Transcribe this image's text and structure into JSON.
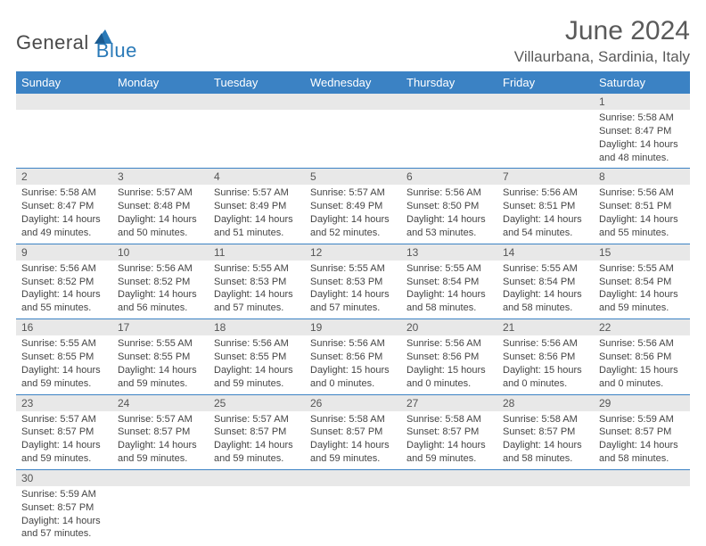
{
  "brand": {
    "part1": "General",
    "part2": "Blue"
  },
  "title": "June 2024",
  "location": "Villaurbana, Sardinia, Italy",
  "colors": {
    "header_bg": "#3b82c4",
    "header_text": "#ffffff",
    "daynum_bg": "#e8e8e8",
    "border": "#3b82c4",
    "logo_gray": "#4a4a4a",
    "logo_blue": "#2a7ab8"
  },
  "weekdays": [
    "Sunday",
    "Monday",
    "Tuesday",
    "Wednesday",
    "Thursday",
    "Friday",
    "Saturday"
  ],
  "weeks": [
    [
      null,
      null,
      null,
      null,
      null,
      null,
      {
        "n": "1",
        "sr": "5:58 AM",
        "ss": "8:47 PM",
        "dl": "14 hours and 48 minutes."
      }
    ],
    [
      {
        "n": "2",
        "sr": "5:58 AM",
        "ss": "8:47 PM",
        "dl": "14 hours and 49 minutes."
      },
      {
        "n": "3",
        "sr": "5:57 AM",
        "ss": "8:48 PM",
        "dl": "14 hours and 50 minutes."
      },
      {
        "n": "4",
        "sr": "5:57 AM",
        "ss": "8:49 PM",
        "dl": "14 hours and 51 minutes."
      },
      {
        "n": "5",
        "sr": "5:57 AM",
        "ss": "8:49 PM",
        "dl": "14 hours and 52 minutes."
      },
      {
        "n": "6",
        "sr": "5:56 AM",
        "ss": "8:50 PM",
        "dl": "14 hours and 53 minutes."
      },
      {
        "n": "7",
        "sr": "5:56 AM",
        "ss": "8:51 PM",
        "dl": "14 hours and 54 minutes."
      },
      {
        "n": "8",
        "sr": "5:56 AM",
        "ss": "8:51 PM",
        "dl": "14 hours and 55 minutes."
      }
    ],
    [
      {
        "n": "9",
        "sr": "5:56 AM",
        "ss": "8:52 PM",
        "dl": "14 hours and 55 minutes."
      },
      {
        "n": "10",
        "sr": "5:56 AM",
        "ss": "8:52 PM",
        "dl": "14 hours and 56 minutes."
      },
      {
        "n": "11",
        "sr": "5:55 AM",
        "ss": "8:53 PM",
        "dl": "14 hours and 57 minutes."
      },
      {
        "n": "12",
        "sr": "5:55 AM",
        "ss": "8:53 PM",
        "dl": "14 hours and 57 minutes."
      },
      {
        "n": "13",
        "sr": "5:55 AM",
        "ss": "8:54 PM",
        "dl": "14 hours and 58 minutes."
      },
      {
        "n": "14",
        "sr": "5:55 AM",
        "ss": "8:54 PM",
        "dl": "14 hours and 58 minutes."
      },
      {
        "n": "15",
        "sr": "5:55 AM",
        "ss": "8:54 PM",
        "dl": "14 hours and 59 minutes."
      }
    ],
    [
      {
        "n": "16",
        "sr": "5:55 AM",
        "ss": "8:55 PM",
        "dl": "14 hours and 59 minutes."
      },
      {
        "n": "17",
        "sr": "5:55 AM",
        "ss": "8:55 PM",
        "dl": "14 hours and 59 minutes."
      },
      {
        "n": "18",
        "sr": "5:56 AM",
        "ss": "8:55 PM",
        "dl": "14 hours and 59 minutes."
      },
      {
        "n": "19",
        "sr": "5:56 AM",
        "ss": "8:56 PM",
        "dl": "15 hours and 0 minutes."
      },
      {
        "n": "20",
        "sr": "5:56 AM",
        "ss": "8:56 PM",
        "dl": "15 hours and 0 minutes."
      },
      {
        "n": "21",
        "sr": "5:56 AM",
        "ss": "8:56 PM",
        "dl": "15 hours and 0 minutes."
      },
      {
        "n": "22",
        "sr": "5:56 AM",
        "ss": "8:56 PM",
        "dl": "15 hours and 0 minutes."
      }
    ],
    [
      {
        "n": "23",
        "sr": "5:57 AM",
        "ss": "8:57 PM",
        "dl": "14 hours and 59 minutes."
      },
      {
        "n": "24",
        "sr": "5:57 AM",
        "ss": "8:57 PM",
        "dl": "14 hours and 59 minutes."
      },
      {
        "n": "25",
        "sr": "5:57 AM",
        "ss": "8:57 PM",
        "dl": "14 hours and 59 minutes."
      },
      {
        "n": "26",
        "sr": "5:58 AM",
        "ss": "8:57 PM",
        "dl": "14 hours and 59 minutes."
      },
      {
        "n": "27",
        "sr": "5:58 AM",
        "ss": "8:57 PM",
        "dl": "14 hours and 59 minutes."
      },
      {
        "n": "28",
        "sr": "5:58 AM",
        "ss": "8:57 PM",
        "dl": "14 hours and 58 minutes."
      },
      {
        "n": "29",
        "sr": "5:59 AM",
        "ss": "8:57 PM",
        "dl": "14 hours and 58 minutes."
      }
    ],
    [
      {
        "n": "30",
        "sr": "5:59 AM",
        "ss": "8:57 PM",
        "dl": "14 hours and 57 minutes."
      },
      null,
      null,
      null,
      null,
      null,
      null
    ]
  ],
  "labels": {
    "sunrise": "Sunrise:",
    "sunset": "Sunset:",
    "daylight": "Daylight:"
  }
}
